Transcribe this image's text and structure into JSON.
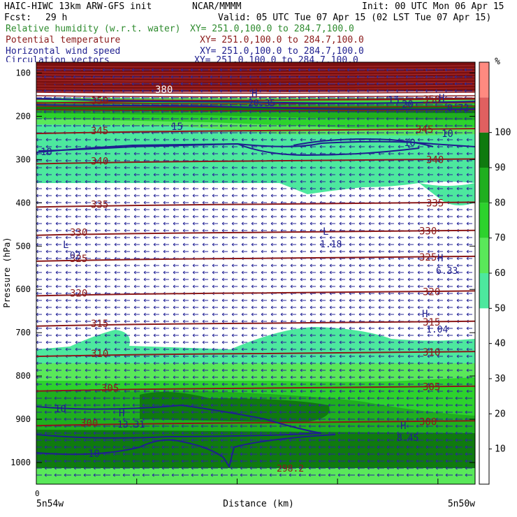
{
  "header": {
    "model": "HAIC-HIWC 13km ARW-GFS init",
    "org": "NCAR/MMMM",
    "init": "Init: 00 UTC Mon 06 Apr 15",
    "fcst_label": "Fcst:",
    "fcst_value": "29 h",
    "valid": "Valid: 05 UTC Tue 07 Apr 15 (02 LST Tue 07 Apr 15)"
  },
  "legend_lines": [
    {
      "name": "Relative humidity (w.r.t. water)",
      "xy": "XY= 251.0,100.0 to 284.7,100.0",
      "color": "#2e8b2e"
    },
    {
      "name": "Potential temperature",
      "xy": "XY= 251.0,100.0 to 284.7,100.0",
      "color": "#8b1a1a"
    },
    {
      "name": "Horizontal wind speed",
      "xy": "XY= 251.0,100.0 to 284.7,100.0",
      "color": "#1f1f8f"
    },
    {
      "name": "Circulation vectors",
      "xy": "XY= 251.0,100.0 to 284.7,100.0",
      "color": "#1f1f8f"
    }
  ],
  "chart_data": {
    "type": "heatmap",
    "ylabel": "Pressure (hPa)",
    "xlabel": "Distance (km)",
    "x_start_label": "5n54w",
    "x_end_label": "5n50w",
    "x_zero_label": "0",
    "yticks": [
      100,
      200,
      300,
      400,
      500,
      600,
      700,
      800,
      900,
      1000
    ],
    "ylim": [
      1050,
      75
    ],
    "colorbar": {
      "unit": "%",
      "ticks": [
        10,
        20,
        30,
        40,
        50,
        60,
        70,
        80,
        90,
        100
      ],
      "bands": [
        {
          "from": 0,
          "to": 50,
          "color": "#ffffff"
        },
        {
          "from": 50,
          "to": 60,
          "color": "#4de89e"
        },
        {
          "from": 60,
          "to": 70,
          "color": "#5ae85a"
        },
        {
          "from": 70,
          "to": 80,
          "color": "#2dd22d"
        },
        {
          "from": 80,
          "to": 90,
          "color": "#1faf1f"
        },
        {
          "from": 90,
          "to": 100,
          "color": "#0f7a0f"
        },
        {
          "from": 100,
          "to": 110,
          "color": "#e06060"
        },
        {
          "from": 110,
          "to": 120,
          "color": "#ff8a80"
        }
      ]
    },
    "theta_contours": [
      {
        "value": "380",
        "p": 120
      },
      {
        "value": "350",
        "p": 165
      },
      {
        "value": "345",
        "p": 235
      },
      {
        "value": "340",
        "p": 305
      },
      {
        "value": "335",
        "p": 405
      },
      {
        "value": "330",
        "p": 470
      },
      {
        "value": "325",
        "p": 530
      },
      {
        "value": "320",
        "p": 610
      },
      {
        "value": "315",
        "p": 680
      },
      {
        "value": "310",
        "p": 750
      },
      {
        "value": "305",
        "p": 830
      },
      {
        "value": "300",
        "p": 910
      }
    ],
    "wind_labels": [
      "15",
      "10",
      "10",
      "10",
      "10",
      "20",
      "15",
      "10"
    ],
    "extrema": [
      {
        "kind": "L",
        "value": ".02"
      },
      {
        "kind": "L",
        "value": "1.18"
      },
      {
        "kind": "H",
        "value": "6.33"
      },
      {
        "kind": "H",
        "value": "1.04"
      },
      {
        "kind": "H",
        "value": "13.31"
      },
      {
        "kind": "H",
        "value": "8.45"
      },
      {
        "kind": "H",
        "value": "20.35"
      },
      {
        "kind": "H",
        "value": "0.72"
      },
      {
        "kind": "",
        "value": "298.2"
      }
    ]
  },
  "colors": {
    "theta": "#8b1a1a",
    "wind": "#1f1f8f",
    "vectors": "#2a2a9a",
    "strat": "#7a0f0f"
  }
}
